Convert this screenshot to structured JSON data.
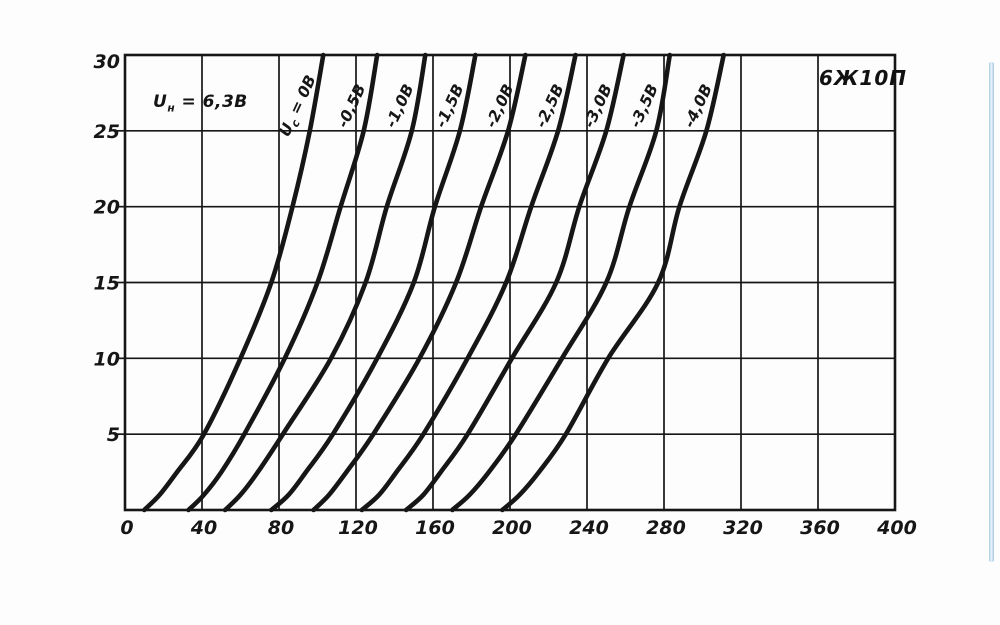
{
  "colors": {
    "ink": "#161616",
    "paper": "#fdfdfd",
    "scrollbar_blue": "#a5c8e0"
  },
  "chart_data": {
    "type": "line",
    "title": "6Ж10П",
    "heater_label": {
      "pre": "U",
      "sub": "н",
      "post": " = 6,3В"
    },
    "xlabel": "",
    "ylabel": "",
    "xlim": [
      0,
      400
    ],
    "ylim": [
      0,
      30
    ],
    "x_ticks": [
      0,
      40,
      80,
      120,
      160,
      200,
      240,
      280,
      320,
      360,
      400
    ],
    "y_ticks": [
      5,
      10,
      15,
      20,
      25,
      30
    ],
    "grid": true,
    "legend_position": "labels-on-curves",
    "series": [
      {
        "name": "Uc = 0В",
        "label_parts": {
          "pre": "U",
          "sub": "с",
          "post": " = 0В"
        },
        "points": [
          [
            10,
            0
          ],
          [
            18,
            1
          ],
          [
            27,
            2.5
          ],
          [
            41,
            5
          ],
          [
            60,
            10
          ],
          [
            76,
            15
          ],
          [
            87,
            20
          ],
          [
            96,
            25
          ],
          [
            103,
            30
          ]
        ]
      },
      {
        "name": "-0,5В",
        "points": [
          [
            33,
            0
          ],
          [
            41,
            1
          ],
          [
            50,
            2.5
          ],
          [
            62,
            5
          ],
          [
            83,
            10
          ],
          [
            100,
            15
          ],
          [
            112,
            20
          ],
          [
            124,
            25
          ],
          [
            131,
            30
          ]
        ]
      },
      {
        "name": "-1,0В",
        "points": [
          [
            52,
            0
          ],
          [
            60,
            1
          ],
          [
            69,
            2.5
          ],
          [
            82,
            5
          ],
          [
            107,
            10
          ],
          [
            125,
            15
          ],
          [
            136,
            20
          ],
          [
            149,
            25
          ],
          [
            156,
            30
          ]
        ]
      },
      {
        "name": "-1,5В",
        "points": [
          [
            76,
            0
          ],
          [
            85,
            1
          ],
          [
            94,
            2.5
          ],
          [
            108,
            5
          ],
          [
            131,
            10
          ],
          [
            150,
            15
          ],
          [
            161,
            20
          ],
          [
            174,
            25
          ],
          [
            182,
            30
          ]
        ]
      },
      {
        "name": "-2,0В",
        "points": [
          [
            98,
            0
          ],
          [
            106,
            1
          ],
          [
            115,
            2.5
          ],
          [
            129,
            5
          ],
          [
            153,
            10
          ],
          [
            172,
            15
          ],
          [
            185,
            20
          ],
          [
            199,
            25
          ],
          [
            208,
            30
          ]
        ]
      },
      {
        "name": "-2,5В",
        "points": [
          [
            123,
            0
          ],
          [
            132,
            1
          ],
          [
            141,
            2.5
          ],
          [
            155,
            5
          ],
          [
            178,
            10
          ],
          [
            198,
            15
          ],
          [
            211,
            20
          ],
          [
            225,
            25
          ],
          [
            234,
            30
          ]
        ]
      },
      {
        "name": "-3,0В",
        "points": [
          [
            146,
            0
          ],
          [
            155,
            1
          ],
          [
            164,
            2.5
          ],
          [
            178,
            5
          ],
          [
            201,
            10
          ],
          [
            224,
            15
          ],
          [
            236,
            20
          ],
          [
            250,
            25
          ],
          [
            259,
            30
          ]
        ]
      },
      {
        "name": "-3,5В",
        "points": [
          [
            170,
            0
          ],
          [
            179,
            1
          ],
          [
            189,
            2.5
          ],
          [
            203,
            5
          ],
          [
            227,
            10
          ],
          [
            250,
            15
          ],
          [
            262,
            20
          ],
          [
            276,
            25
          ],
          [
            283,
            30
          ]
        ]
      },
      {
        "name": "-4,0В",
        "points": [
          [
            196,
            0
          ],
          [
            205,
            1
          ],
          [
            215,
            2.5
          ],
          [
            229,
            5
          ],
          [
            251,
            10
          ],
          [
            277,
            15
          ],
          [
            288,
            20
          ],
          [
            302,
            25
          ],
          [
            311,
            30
          ]
        ]
      }
    ]
  }
}
